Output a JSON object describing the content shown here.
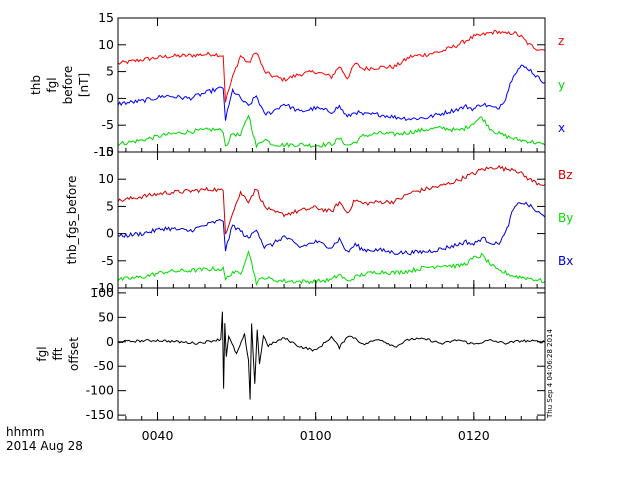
{
  "chart_data": [
    {
      "type": "line",
      "ylabel_lines": [
        "thb",
        "fgl",
        "before",
        "[nT]"
      ],
      "ylim": [
        -10,
        15
      ],
      "yticks": [
        -10,
        -5,
        0,
        5,
        10,
        15
      ],
      "legend_placement": "right",
      "series": [
        {
          "name": "z",
          "color": "#ff0000",
          "x": [
            35.0,
            38.0,
            41.0,
            44.0,
            47.0,
            48.3,
            48.6,
            49.5,
            50.5,
            51.5,
            52.5,
            53.5,
            54.5,
            56.0,
            58.0,
            60.0,
            62.0,
            63.0,
            64.0,
            65.0,
            66.0,
            68.0,
            70.0,
            72.0,
            74.0,
            76.0,
            78.0,
            79.0,
            80.0,
            81.0,
            82.0,
            83.0,
            84.0,
            85.0,
            86.0,
            87.0,
            88.0,
            89.0
          ],
          "y": [
            6.5,
            7.2,
            7.8,
            8.0,
            8.3,
            8.0,
            -0.5,
            4.0,
            8.0,
            6.5,
            8.8,
            5.0,
            4.2,
            3.5,
            4.5,
            5.0,
            4.0,
            6.0,
            3.8,
            6.5,
            5.5,
            5.8,
            5.9,
            7.8,
            8.2,
            8.8,
            10.0,
            10.8,
            11.5,
            11.8,
            12.2,
            12.5,
            12.0,
            12.3,
            11.5,
            10.0,
            9.3,
            9.0
          ]
        },
        {
          "name": "y",
          "color": "#00d800",
          "x": [
            35.0,
            38.0,
            41.0,
            44.0,
            47.0,
            48.3,
            48.6,
            49.5,
            50.5,
            51.5,
            52.5,
            53.5,
            54.5,
            56.0,
            58.0,
            60.0,
            62.0,
            63.0,
            64.0,
            65.0,
            66.0,
            68.0,
            70.0,
            72.0,
            74.0,
            76.0,
            78.0,
            79.0,
            80.0,
            81.0,
            82.0,
            83.0,
            84.0,
            85.0,
            86.0,
            87.0,
            88.0,
            89.0
          ],
          "y": [
            -8.5,
            -7.8,
            -6.8,
            -6.2,
            -5.8,
            -6.0,
            -9.0,
            -6.5,
            -7.0,
            -3.0,
            -9.0,
            -7.5,
            -8.5,
            -8.7,
            -8.6,
            -8.8,
            -8.5,
            -7.5,
            -8.8,
            -8.2,
            -7.0,
            -6.5,
            -6.7,
            -6.3,
            -5.8,
            -5.5,
            -6.0,
            -5.5,
            -4.5,
            -3.5,
            -5.5,
            -6.5,
            -7.0,
            -7.5,
            -7.8,
            -8.0,
            -8.3,
            -8.8
          ]
        },
        {
          "name": "x",
          "color": "#0000ff",
          "x": [
            35.0,
            38.0,
            41.0,
            44.0,
            47.0,
            48.3,
            48.6,
            49.5,
            50.5,
            51.5,
            52.5,
            53.5,
            54.5,
            56.0,
            58.0,
            60.0,
            62.0,
            63.0,
            64.0,
            65.0,
            66.0,
            68.0,
            70.0,
            72.0,
            74.0,
            76.0,
            78.0,
            79.0,
            80.0,
            81.0,
            82.0,
            83.0,
            84.0,
            85.0,
            86.0,
            87.0,
            88.0,
            89.0
          ],
          "y": [
            -1.0,
            -0.5,
            0.5,
            0.0,
            1.5,
            2.0,
            -4.0,
            1.5,
            0.0,
            -1.5,
            0.5,
            -3.0,
            -2.5,
            -1.0,
            -2.5,
            -1.8,
            -2.5,
            -1.5,
            -3.5,
            -2.5,
            -3.0,
            -3.0,
            -3.5,
            -3.8,
            -3.6,
            -2.8,
            -2.0,
            -1.5,
            -2.0,
            -1.0,
            -1.5,
            -2.0,
            0.0,
            4.5,
            6.0,
            5.5,
            4.0,
            3.0
          ]
        }
      ]
    },
    {
      "type": "line",
      "ylabel_lines": [
        "thb_fgs_before"
      ],
      "ylim": [
        -10,
        15
      ],
      "yticks": [
        -10,
        -5,
        0,
        5,
        10,
        15
      ],
      "legend_placement": "right",
      "series": [
        {
          "name": "Bz",
          "color": "#d00000",
          "x": [
            35.0,
            38.0,
            41.0,
            44.0,
            47.0,
            48.3,
            48.6,
            49.5,
            50.5,
            51.5,
            52.5,
            53.5,
            54.5,
            56.0,
            58.0,
            60.0,
            62.0,
            63.0,
            64.0,
            65.0,
            66.0,
            68.0,
            70.0,
            72.0,
            74.0,
            76.0,
            78.0,
            79.0,
            80.0,
            81.0,
            82.0,
            83.0,
            84.0,
            85.0,
            86.0,
            87.0,
            88.0,
            89.0
          ],
          "y": [
            6.0,
            6.8,
            7.5,
            7.8,
            8.2,
            7.8,
            0.0,
            4.0,
            7.5,
            6.0,
            8.3,
            5.0,
            4.0,
            3.5,
            4.2,
            4.8,
            4.0,
            5.8,
            3.8,
            6.2,
            5.5,
            5.8,
            5.9,
            7.5,
            8.2,
            8.8,
            9.8,
            10.5,
            11.0,
            11.8,
            12.0,
            12.3,
            11.8,
            12.0,
            11.0,
            10.0,
            9.3,
            9.0
          ]
        },
        {
          "name": "By",
          "color": "#00e000",
          "x": [
            35.0,
            38.0,
            41.0,
            44.0,
            47.0,
            48.3,
            48.6,
            49.5,
            50.5,
            51.5,
            52.5,
            53.5,
            54.5,
            56.0,
            58.0,
            60.0,
            62.0,
            63.0,
            64.0,
            65.0,
            66.0,
            68.0,
            70.0,
            72.0,
            74.0,
            76.0,
            78.0,
            79.0,
            80.0,
            81.0,
            82.0,
            83.0,
            84.0,
            85.0,
            86.0,
            87.0,
            88.0,
            89.0
          ],
          "y": [
            -8.5,
            -8.0,
            -7.0,
            -6.8,
            -6.5,
            -6.5,
            -8.5,
            -7.0,
            -7.5,
            -3.0,
            -9.0,
            -8.0,
            -8.5,
            -8.7,
            -8.8,
            -8.8,
            -8.5,
            -7.5,
            -8.8,
            -8.0,
            -7.5,
            -7.0,
            -7.2,
            -6.8,
            -6.2,
            -5.8,
            -6.0,
            -5.5,
            -4.5,
            -4.0,
            -5.5,
            -6.8,
            -7.2,
            -7.8,
            -8.0,
            -8.2,
            -8.5,
            -8.8
          ]
        },
        {
          "name": "Bx",
          "color": "#0000d0",
          "x": [
            35.0,
            38.0,
            41.0,
            44.0,
            47.0,
            48.3,
            48.6,
            49.5,
            50.5,
            51.5,
            52.5,
            53.5,
            54.5,
            56.0,
            58.0,
            60.0,
            62.0,
            63.0,
            64.0,
            65.0,
            66.0,
            68.0,
            70.0,
            72.0,
            74.0,
            76.0,
            78.0,
            79.0,
            80.0,
            81.0,
            82.0,
            83.0,
            84.0,
            85.0,
            86.0,
            87.0,
            88.0,
            89.0
          ],
          "y": [
            -0.5,
            0.0,
            1.0,
            0.5,
            2.0,
            2.5,
            -3.0,
            1.5,
            0.5,
            -1.0,
            1.0,
            -2.5,
            -2.0,
            -0.5,
            -2.5,
            -1.5,
            -2.5,
            -1.0,
            -3.5,
            -2.0,
            -3.0,
            -3.0,
            -3.5,
            -3.5,
            -3.3,
            -2.8,
            -2.0,
            -1.5,
            -2.0,
            -0.8,
            -1.5,
            -2.0,
            0.0,
            4.5,
            5.8,
            5.2,
            4.0,
            3.0
          ]
        }
      ]
    },
    {
      "type": "line",
      "ylabel_lines": [
        "fgl",
        "fft",
        "offset"
      ],
      "ylim": [
        -160,
        110
      ],
      "yticks": [
        -150,
        -100,
        -50,
        0,
        50,
        100
      ],
      "series": [
        {
          "color": "#000000",
          "x": [
            35.0,
            40.0,
            45.0,
            48.0,
            48.2,
            48.35,
            48.5,
            48.7,
            49.0,
            50.0,
            51.0,
            51.5,
            51.7,
            51.9,
            52.3,
            52.6,
            52.9,
            53.4,
            54.0,
            56.0,
            58.0,
            60.0,
            62.0,
            63.0,
            64.0,
            65.0,
            66.0,
            68.0,
            70.0,
            72.0,
            74.0,
            76.0,
            78.0,
            80.0,
            82.0,
            84.0,
            86.0,
            89.0
          ],
          "y": [
            0,
            3,
            -3,
            5,
            62,
            -95,
            40,
            -30,
            10,
            -25,
            15,
            -40,
            -120,
            35,
            -85,
            25,
            -45,
            12,
            -8,
            8,
            -10,
            -18,
            10,
            -12,
            12,
            8,
            -6,
            6,
            -10,
            6,
            5,
            -4,
            4,
            -5,
            3,
            -3,
            2,
            0
          ]
        }
      ]
    }
  ],
  "x_axis": {
    "xlim": [
      35.0,
      89.0
    ],
    "ticks": [
      {
        "value": 40.0,
        "label": "0040"
      },
      {
        "value": 60.0,
        "label": "0100"
      },
      {
        "value": 80.0,
        "label": "0120"
      }
    ]
  },
  "corner_label_1": "hhmm",
  "corner_label_2": "2014 Aug 28",
  "timestamp": "Thu Sep  4 04:06:28 2014"
}
